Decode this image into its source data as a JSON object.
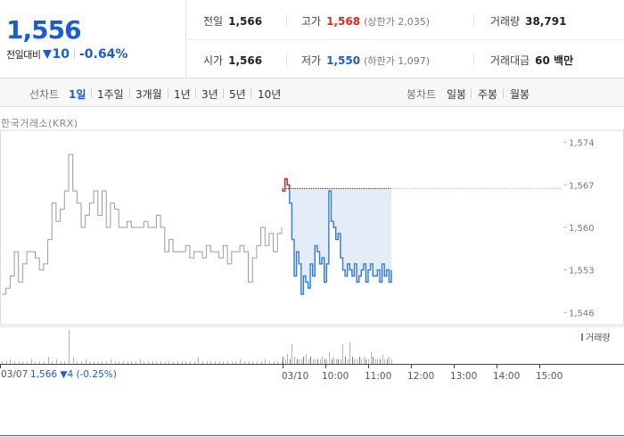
{
  "summary": {
    "price": "1,556",
    "change_label": "전일대비",
    "change_amount": "10",
    "change_percent": "-0.64%",
    "prev_close_label": "전일",
    "prev_close": "1,566",
    "open_label": "시가",
    "open": "1,566",
    "high_label": "고가",
    "high": "1,568",
    "upper_limit": "(상한가 2,035)",
    "low_label": "저가",
    "low": "1,550",
    "lower_limit": "(하한가 1,097)",
    "volume_label": "거래량",
    "volume": "38,791",
    "trade_value_label": "거래대금",
    "trade_value": "60 백만",
    "colors": {
      "up": "#e1261c",
      "down": "#1a5bd6"
    }
  },
  "tabs": {
    "line_label": "선차트",
    "periods": [
      "1일",
      "1주일",
      "3개월",
      "1년",
      "3년",
      "5년",
      "10년"
    ],
    "active_period": "1일",
    "candle_label": "봉차트",
    "candles": [
      "일봉",
      "주봉",
      "월봉"
    ]
  },
  "chart_data": {
    "type": "line",
    "source": "한국거래소(KRX)",
    "y_ticks": [
      "1,574",
      "1,567",
      "1,560",
      "1,553",
      "1,546"
    ],
    "ylim": [
      1544,
      1576
    ],
    "prev_close": 1566.5,
    "x_ticks": [
      "03/10",
      "10:00",
      "11:00",
      "12:00",
      "13:00",
      "14:00",
      "15:00"
    ],
    "prev_day": {
      "date": "03/07",
      "summary": "1,566 ▼4 (-0.25%)",
      "values": [
        1549,
        1550,
        1552,
        1556,
        1551,
        1554,
        1556,
        1556,
        1555,
        1553,
        1554,
        1558,
        1564,
        1561,
        1563,
        1566,
        1572,
        1566,
        1564,
        1560,
        1562,
        1564,
        1566,
        1562,
        1566,
        1560,
        1564,
        1563,
        1560,
        1560,
        1561,
        1560,
        1560,
        1560,
        1561,
        1560,
        1560,
        1562,
        1560,
        1556,
        1558,
        1556,
        1556,
        1556,
        1557,
        1555,
        1556,
        1556,
        1555,
        1557,
        1556,
        1556,
        1555,
        1557,
        1554,
        1556,
        1556,
        1557,
        1556,
        1551,
        1555,
        1557,
        1560,
        1557,
        1559,
        1556,
        1559,
        1560
      ],
      "volume": [
        1,
        1,
        2,
        1,
        1,
        1,
        1,
        2,
        1,
        1,
        1,
        3,
        1,
        2,
        1,
        1,
        14,
        3,
        1,
        1,
        2,
        1,
        1,
        1,
        1,
        1,
        2,
        1,
        1,
        1,
        1,
        1,
        1,
        2,
        1,
        1,
        1,
        1,
        1,
        1,
        1,
        1,
        1,
        1,
        1,
        1,
        1,
        3,
        1,
        1,
        1,
        1,
        1,
        1,
        1,
        1,
        1,
        2,
        1,
        1,
        1,
        1,
        1,
        2,
        1,
        1,
        1,
        1
      ]
    },
    "today": {
      "label": "3/10",
      "values": [
        1566,
        1568,
        1567,
        1564,
        1558,
        1552,
        1556,
        1554,
        1549,
        1552,
        1551,
        1550,
        1554,
        1552,
        1557,
        1556,
        1554,
        1555,
        1551,
        1554,
        1566,
        1561,
        1560,
        1558,
        1559,
        1555,
        1553,
        1552,
        1554,
        1553,
        1552,
        1554,
        1551,
        1552,
        1553,
        1554,
        1551,
        1553,
        1554,
        1552,
        1552,
        1553,
        1551,
        1554,
        1552,
        1553,
        1551,
        1553
      ],
      "volume": [
        3,
        2,
        4,
        2,
        8,
        3,
        2,
        2,
        2,
        3,
        4,
        2,
        3,
        2,
        2,
        2,
        2,
        3,
        2,
        2,
        5,
        2,
        3,
        2,
        2,
        2,
        8,
        3,
        2,
        9,
        3,
        2,
        2,
        3,
        2,
        3,
        2,
        2,
        5,
        3,
        2,
        2,
        2,
        4,
        2,
        2,
        3,
        2
      ]
    },
    "legend": "거래량",
    "colors": {
      "line": "#2f7ad6",
      "fill": "#e4ecfa",
      "prev_line": "#9b9b9b",
      "high_line": "#e1261c",
      "volume": "#b4b4b4",
      "volume_today": "#7b6fd0"
    }
  }
}
